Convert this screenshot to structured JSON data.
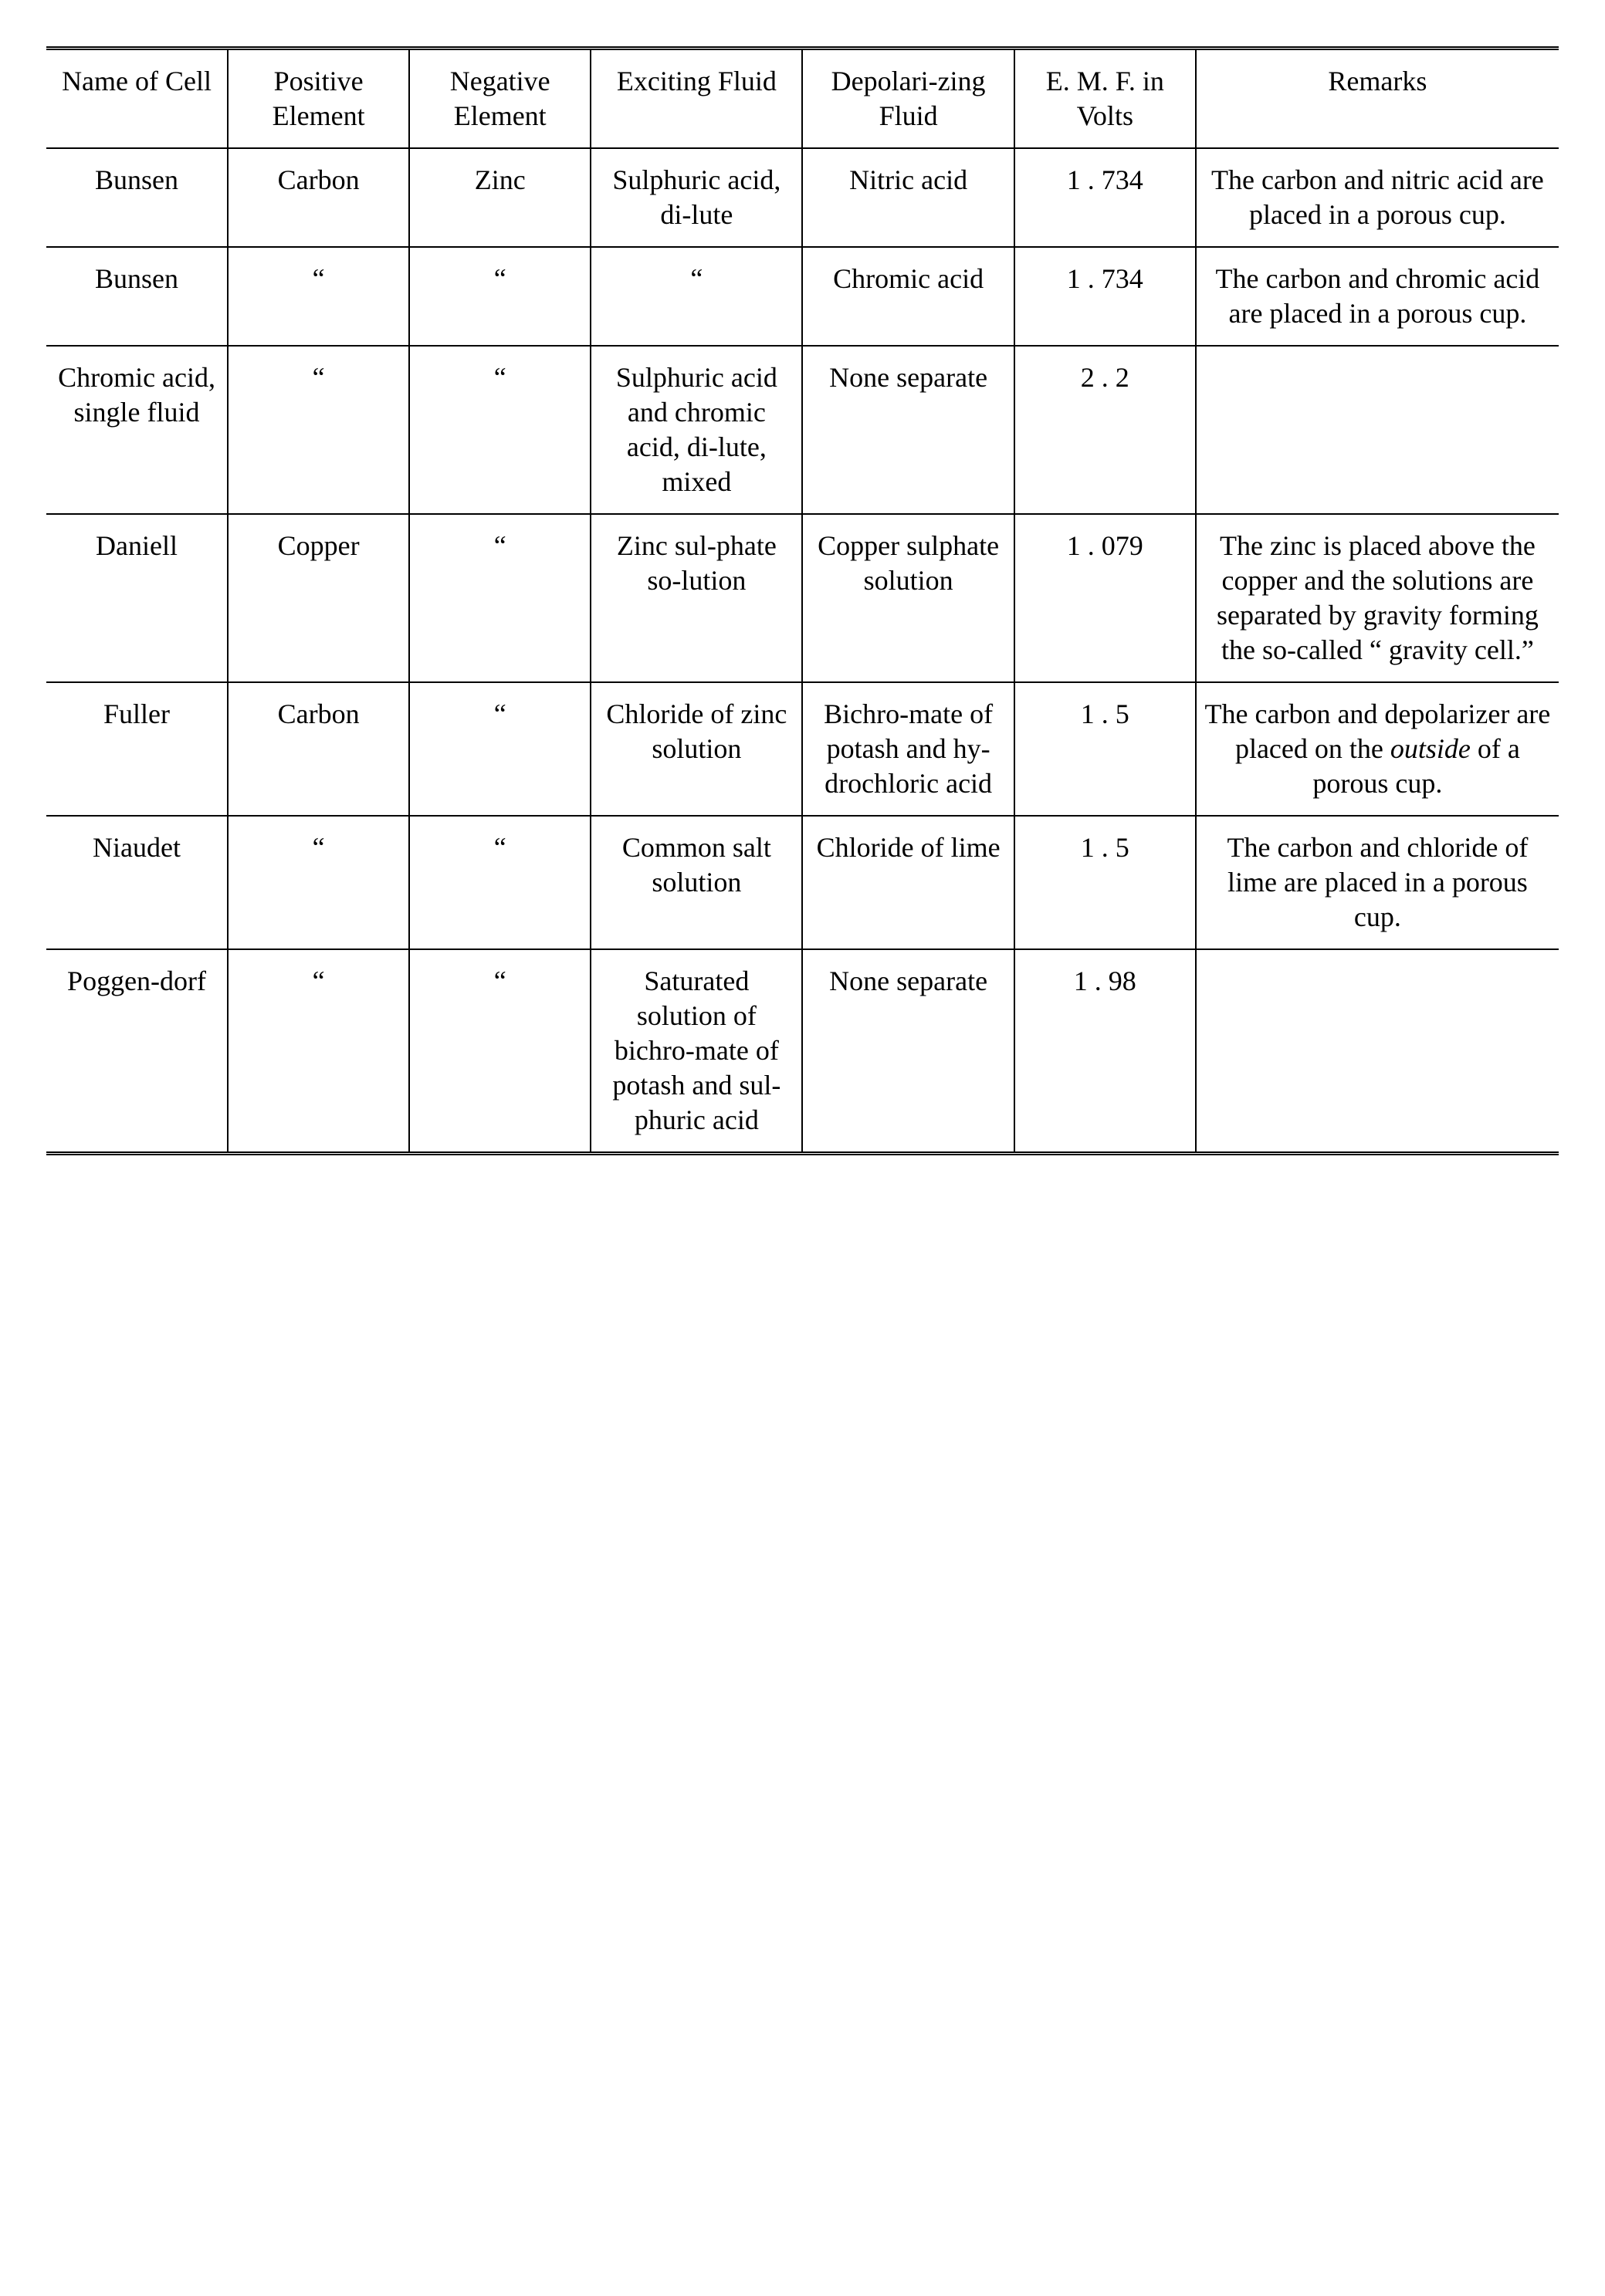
{
  "table": {
    "columns": [
      "Name of Cell",
      "Positive Element",
      "Negative Element",
      "Exciting Fluid",
      "Depolari-zing Fluid",
      "E. M. F. in Volts",
      "Remarks"
    ],
    "rows": [
      {
        "name": "Bunsen",
        "positive": "Carbon",
        "negative": "Zinc",
        "exciting": "Sulphuric acid, di-lute",
        "depolarizing": "Nitric acid",
        "emf": "1 . 734",
        "remarks": "The carbon and nitric acid are placed in a porous cup."
      },
      {
        "name": "Bunsen",
        "positive": "“",
        "negative": "“",
        "exciting": "“",
        "depolarizing": "Chromic acid",
        "emf": "1 . 734",
        "remarks": "The carbon and chromic acid are placed in a porous cup."
      },
      {
        "name": "Chromic acid, single fluid",
        "positive": "“",
        "negative": "“",
        "exciting": "Sulphuric acid and chromic acid, di-lute, mixed",
        "depolarizing": "None separate",
        "emf": "2 . 2",
        "remarks": ""
      },
      {
        "name": "Daniell",
        "positive": "Copper",
        "negative": "“",
        "exciting": "Zinc sul-phate so-lution",
        "depolarizing": "Copper sulphate solution",
        "emf": "1 . 079",
        "remarks_html": "The zinc is placed above the copper and the solutions are separated by gravity forming the so-called “ gravity cell.”"
      },
      {
        "name": "Fuller",
        "positive": "Carbon",
        "negative": "“",
        "exciting": "Chloride of zinc solution",
        "depolarizing": "Bichro-mate of potash and hy-drochloric acid",
        "emf": "1 . 5",
        "remarks_html": "The carbon and depolarizer are placed on the <em>outside</em> of a porous cup."
      },
      {
        "name": "Niaudet",
        "positive": "“",
        "negative": "“",
        "exciting": "Common salt solution",
        "depolarizing": "Chloride of lime",
        "emf": "1 . 5",
        "remarks": "The carbon and chloride of lime are placed in a porous cup."
      },
      {
        "name": "Poggen-dorf",
        "positive": "“",
        "negative": "“",
        "exciting": "Saturated solution of bichro-mate of potash and sul-phuric acid",
        "depolarizing": "None separate",
        "emf": "1 . 98",
        "remarks": ""
      }
    ],
    "font_family": "Georgia, 'Times New Roman', serif",
    "font_size_pt": 36,
    "background_color": "#ffffff",
    "text_color": "#000000",
    "border_color": "#000000",
    "column_widths_percent": [
      12,
      12,
      12,
      14,
      14,
      12,
      24
    ]
  }
}
